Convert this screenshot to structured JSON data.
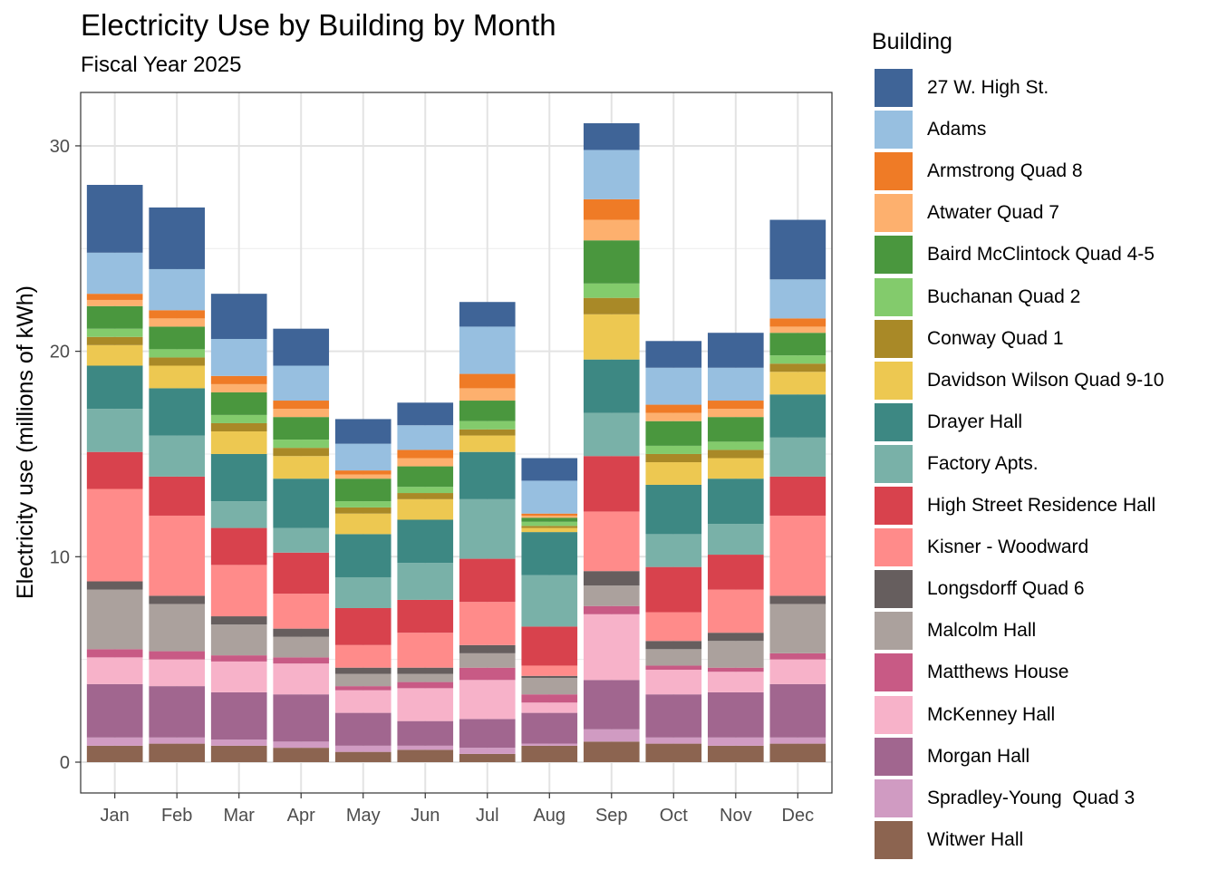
{
  "chart_data": {
    "type": "bar",
    "stacked": true,
    "title": "Electricity Use by Building by Month",
    "subtitle": "Fiscal Year 2025",
    "xlabel": "",
    "ylabel": "Electricity use (millions of kWh)",
    "ylim": [
      -1.5,
      32.6
    ],
    "yticks": [
      0,
      10,
      20,
      30
    ],
    "grid": true,
    "legend_title": "Building",
    "legend_position": "right",
    "categories": [
      "Jan",
      "Feb",
      "Mar",
      "Apr",
      "May",
      "Jun",
      "Jul",
      "Aug",
      "Sep",
      "Oct",
      "Nov",
      "Dec"
    ],
    "series": [
      {
        "name": "Witwer Hall",
        "color": "#8C6450",
        "values": [
          0.8,
          0.9,
          0.8,
          0.7,
          0.5,
          0.6,
          0.4,
          0.8,
          1.0,
          0.9,
          0.8,
          0.9
        ]
      },
      {
        "name": "Spradley-Young  Quad 3",
        "color": "#D09BC2",
        "values": [
          0.4,
          0.3,
          0.3,
          0.3,
          0.3,
          0.2,
          0.3,
          0.1,
          0.6,
          0.3,
          0.4,
          0.3
        ]
      },
      {
        "name": "Morgan Hall",
        "color": "#A1668F",
        "values": [
          2.6,
          2.5,
          2.3,
          2.3,
          1.6,
          1.2,
          1.4,
          1.5,
          2.4,
          2.1,
          2.2,
          2.6
        ]
      },
      {
        "name": "McKenney Hall",
        "color": "#F7B2C9",
        "values": [
          1.3,
          1.3,
          1.5,
          1.5,
          1.1,
          1.6,
          1.9,
          0.5,
          3.2,
          1.2,
          1.0,
          1.2
        ]
      },
      {
        "name": "Matthews House",
        "color": "#C85A85",
        "values": [
          0.4,
          0.4,
          0.3,
          0.3,
          0.2,
          0.3,
          0.6,
          0.4,
          0.4,
          0.2,
          0.2,
          0.3
        ]
      },
      {
        "name": "Malcolm Hall",
        "color": "#ABA19D",
        "values": [
          2.9,
          2.3,
          1.5,
          1.0,
          0.6,
          0.4,
          0.7,
          0.8,
          1.0,
          0.8,
          1.3,
          2.4
        ]
      },
      {
        "name": "Longsdorff Quad 6",
        "color": "#665E5E",
        "values": [
          0.4,
          0.4,
          0.4,
          0.4,
          0.3,
          0.3,
          0.4,
          0.1,
          0.7,
          0.4,
          0.4,
          0.4
        ]
      },
      {
        "name": "Kisner - Woodward",
        "color": "#FF8B8A",
        "values": [
          4.5,
          3.9,
          2.5,
          1.7,
          1.1,
          1.7,
          2.1,
          0.5,
          2.9,
          1.4,
          2.1,
          3.9
        ]
      },
      {
        "name": "High Street Residence Hall",
        "color": "#D8424D",
        "values": [
          1.8,
          1.9,
          1.8,
          2.0,
          1.8,
          1.6,
          2.1,
          1.9,
          2.7,
          2.2,
          1.7,
          1.9
        ]
      },
      {
        "name": "Factory Apts.",
        "color": "#79B1A8",
        "values": [
          2.1,
          2.0,
          1.3,
          1.2,
          1.5,
          1.8,
          2.9,
          2.5,
          2.1,
          1.6,
          1.5,
          1.9
        ]
      },
      {
        "name": "Drayer Hall",
        "color": "#3D8883",
        "values": [
          2.1,
          2.3,
          2.3,
          2.4,
          2.1,
          2.1,
          2.3,
          2.1,
          2.6,
          2.4,
          2.2,
          2.1
        ]
      },
      {
        "name": "Davidson Wilson Quad 9-10",
        "color": "#EDC851",
        "values": [
          1.0,
          1.1,
          1.1,
          1.1,
          1.0,
          1.0,
          0.8,
          0.2,
          2.2,
          1.1,
          1.0,
          1.1
        ]
      },
      {
        "name": "Conway Quad 1",
        "color": "#A98927",
        "values": [
          0.4,
          0.4,
          0.4,
          0.4,
          0.3,
          0.3,
          0.3,
          0.1,
          0.8,
          0.4,
          0.4,
          0.4
        ]
      },
      {
        "name": "Buchanan Quad 2",
        "color": "#83CB6C",
        "values": [
          0.4,
          0.4,
          0.4,
          0.4,
          0.3,
          0.3,
          0.4,
          0.2,
          0.7,
          0.4,
          0.4,
          0.4
        ]
      },
      {
        "name": "Baird McClintock Quad 4-5",
        "color": "#4A973E",
        "values": [
          1.1,
          1.1,
          1.1,
          1.1,
          1.1,
          1.0,
          1.0,
          0.2,
          2.1,
          1.2,
          1.2,
          1.1
        ]
      },
      {
        "name": "Atwater Quad 7",
        "color": "#FDB06E",
        "values": [
          0.3,
          0.4,
          0.4,
          0.4,
          0.2,
          0.4,
          0.6,
          0.1,
          1.0,
          0.4,
          0.4,
          0.3
        ]
      },
      {
        "name": "Armstrong Quad 8",
        "color": "#EF7B26",
        "values": [
          0.3,
          0.4,
          0.4,
          0.4,
          0.2,
          0.4,
          0.7,
          0.1,
          1.0,
          0.4,
          0.4,
          0.4
        ]
      },
      {
        "name": "Adams",
        "color": "#97BFE0",
        "values": [
          2.0,
          2.0,
          1.8,
          1.7,
          1.3,
          1.2,
          2.3,
          1.6,
          2.4,
          1.8,
          1.6,
          1.9
        ]
      },
      {
        "name": "27 W. High St.",
        "color": "#3F6497",
        "values": [
          3.3,
          3.0,
          2.2,
          1.8,
          1.2,
          1.1,
          1.2,
          1.1,
          1.3,
          1.3,
          1.7,
          2.9
        ]
      }
    ]
  }
}
